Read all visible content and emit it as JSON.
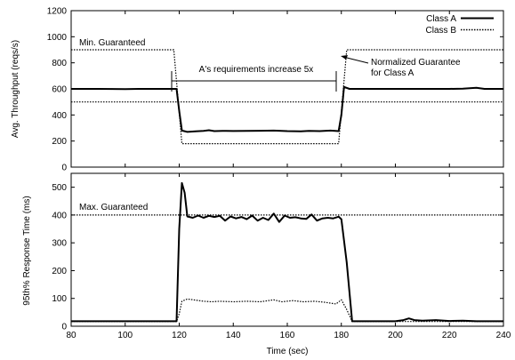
{
  "chart_data": [
    {
      "id": "top",
      "type": "line",
      "title": "",
      "xlabel": "",
      "ylabel": "Avg. Throughput (reqs/s)",
      "xlim": [
        80,
        240
      ],
      "ylim": [
        0,
        1200
      ],
      "xticks": [
        "80",
        "100",
        "120",
        "140",
        "160",
        "180",
        "200",
        "220",
        "240"
      ],
      "yticks": [
        "0",
        "200",
        "400",
        "600",
        "800",
        "1000",
        "1200"
      ],
      "legend": {
        "position": "top-right",
        "entries": [
          "Class A",
          "Class B"
        ]
      },
      "series": [
        {
          "name": "Class A",
          "style": "solid",
          "points": [
            [
              80,
              600
            ],
            [
              90,
              600
            ],
            [
              100,
              598
            ],
            [
              105,
              600
            ],
            [
              110,
              600
            ],
            [
              119,
              600
            ],
            [
              120,
              430
            ],
            [
              121,
              280
            ],
            [
              123,
              270
            ],
            [
              126,
              275
            ],
            [
              129,
              278
            ],
            [
              131,
              283
            ],
            [
              133,
              276
            ],
            [
              136,
              278
            ],
            [
              140,
              277
            ],
            [
              145,
              278
            ],
            [
              150,
              279
            ],
            [
              155,
              280
            ],
            [
              160,
              276
            ],
            [
              165,
              275
            ],
            [
              168,
              278
            ],
            [
              172,
              276
            ],
            [
              176,
              280
            ],
            [
              179,
              276
            ],
            [
              180,
              400
            ],
            [
              181,
              615
            ],
            [
              183,
              600
            ],
            [
              190,
              600
            ],
            [
              200,
              600
            ],
            [
              210,
              600
            ],
            [
              220,
              600
            ],
            [
              225,
              602
            ],
            [
              230,
              608
            ],
            [
              233,
              600
            ],
            [
              240,
              600
            ]
          ]
        },
        {
          "name": "Class B",
          "style": "dotted",
          "points": [
            [
              80,
              500
            ],
            [
              119,
              500
            ],
            [
              120,
              500
            ],
            [
              180,
              500
            ],
            [
              181,
              500
            ],
            [
              240,
              500
            ]
          ]
        },
        {
          "name": "Normalized Guarantee for Class A",
          "style": "dotted",
          "points": [
            [
              80,
              900
            ],
            [
              118,
              900
            ],
            [
              121,
              180
            ],
            [
              179,
              180
            ],
            [
              182,
              900
            ],
            [
              240,
              900
            ]
          ]
        }
      ],
      "annotations": [
        {
          "text": "Min. Guaranteed",
          "x": 84,
          "y": 950
        },
        {
          "text": "A's requirements increase 5x",
          "x": 152,
          "y": 760
        },
        {
          "text": "Normalized Guarantee",
          "x": 195,
          "y": 830
        },
        {
          "text": "for Class A",
          "x": 195,
          "y": 740
        }
      ]
    },
    {
      "id": "bottom",
      "type": "line",
      "title": "",
      "xlabel": "Time (sec)",
      "ylabel": "95th% Response Time (ms)",
      "xlim": [
        80,
        240
      ],
      "ylim": [
        0,
        550
      ],
      "xticks": [
        "80",
        "100",
        "120",
        "140",
        "160",
        "180",
        "200",
        "220",
        "240"
      ],
      "yticks": [
        "0",
        "100",
        "200",
        "300",
        "400",
        "500"
      ],
      "series": [
        {
          "name": "Class A",
          "style": "solid",
          "points": [
            [
              80,
              18
            ],
            [
              100,
              18
            ],
            [
              110,
              18
            ],
            [
              119,
              18
            ],
            [
              120,
              350
            ],
            [
              121,
              515
            ],
            [
              122,
              480
            ],
            [
              123,
              395
            ],
            [
              125,
              390
            ],
            [
              127,
              398
            ],
            [
              129,
              390
            ],
            [
              131,
              397
            ],
            [
              133,
              393
            ],
            [
              135,
              397
            ],
            [
              137,
              380
            ],
            [
              139,
              395
            ],
            [
              141,
              388
            ],
            [
              143,
              393
            ],
            [
              145,
              385
            ],
            [
              147,
              398
            ],
            [
              149,
              380
            ],
            [
              151,
              390
            ],
            [
              153,
              382
            ],
            [
              155,
              405
            ],
            [
              157,
              375
            ],
            [
              159,
              398
            ],
            [
              161,
              390
            ],
            [
              163,
              392
            ],
            [
              165,
              388
            ],
            [
              167,
              386
            ],
            [
              169,
              402
            ],
            [
              171,
              380
            ],
            [
              173,
              388
            ],
            [
              175,
              390
            ],
            [
              177,
              388
            ],
            [
              179,
              394
            ],
            [
              180,
              385
            ],
            [
              182,
              230
            ],
            [
              184,
              18
            ],
            [
              190,
              18
            ],
            [
              200,
              18
            ],
            [
              203,
              22
            ],
            [
              205,
              28
            ],
            [
              207,
              22
            ],
            [
              210,
              20
            ],
            [
              215,
              22
            ],
            [
              220,
              19
            ],
            [
              225,
              20
            ],
            [
              230,
              18
            ],
            [
              240,
              18
            ]
          ]
        },
        {
          "name": "Class B",
          "style": "dotted",
          "points": [
            [
              80,
              17
            ],
            [
              119,
              17
            ],
            [
              120,
              45
            ],
            [
              121,
              90
            ],
            [
              123,
              98
            ],
            [
              126,
              94
            ],
            [
              129,
              90
            ],
            [
              132,
              88
            ],
            [
              135,
              90
            ],
            [
              140,
              88
            ],
            [
              145,
              90
            ],
            [
              150,
              88
            ],
            [
              155,
              95
            ],
            [
              158,
              88
            ],
            [
              162,
              92
            ],
            [
              166,
              88
            ],
            [
              170,
              90
            ],
            [
              174,
              86
            ],
            [
              178,
              80
            ],
            [
              180,
              95
            ],
            [
              182,
              60
            ],
            [
              184,
              17
            ],
            [
              240,
              17
            ]
          ]
        },
        {
          "name": "Max. Guaranteed",
          "style": "dotted",
          "points": [
            [
              80,
              400
            ],
            [
              240,
              400
            ]
          ]
        }
      ],
      "annotations": [
        {
          "text": "Max. Guaranteed",
          "x": 84,
          "y": 415
        }
      ]
    }
  ]
}
